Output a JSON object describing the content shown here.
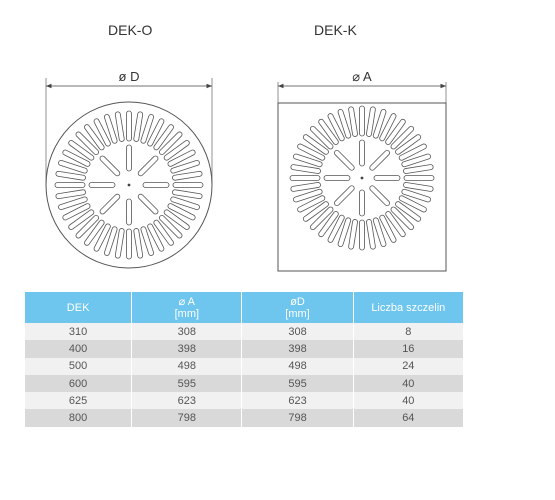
{
  "diagrams": {
    "left": {
      "title": "DEK-O",
      "dimension_label": "ø D"
    },
    "right": {
      "title": "DEK-K",
      "dimension_label": "⌀ A"
    }
  },
  "table": {
    "headers": [
      {
        "line1": "DEK",
        "line2": ""
      },
      {
        "line1": "⌀ A",
        "line2": "[mm]"
      },
      {
        "line1": "øD",
        "line2": "[mm]"
      },
      {
        "line1": "Liczba szczelin",
        "line2": ""
      }
    ],
    "rows": [
      [
        "310",
        "308",
        "308",
        "8"
      ],
      [
        "400",
        "398",
        "398",
        "16"
      ],
      [
        "500",
        "498",
        "498",
        "24"
      ],
      [
        "600",
        "595",
        "595",
        "40"
      ],
      [
        "625",
        "623",
        "623",
        "40"
      ],
      [
        "800",
        "798",
        "798",
        "64"
      ]
    ]
  },
  "colors": {
    "header": "#6ec6ee",
    "row_light": "#f1f1f1",
    "row_dark": "#d9d9d9",
    "line": "#555555"
  }
}
